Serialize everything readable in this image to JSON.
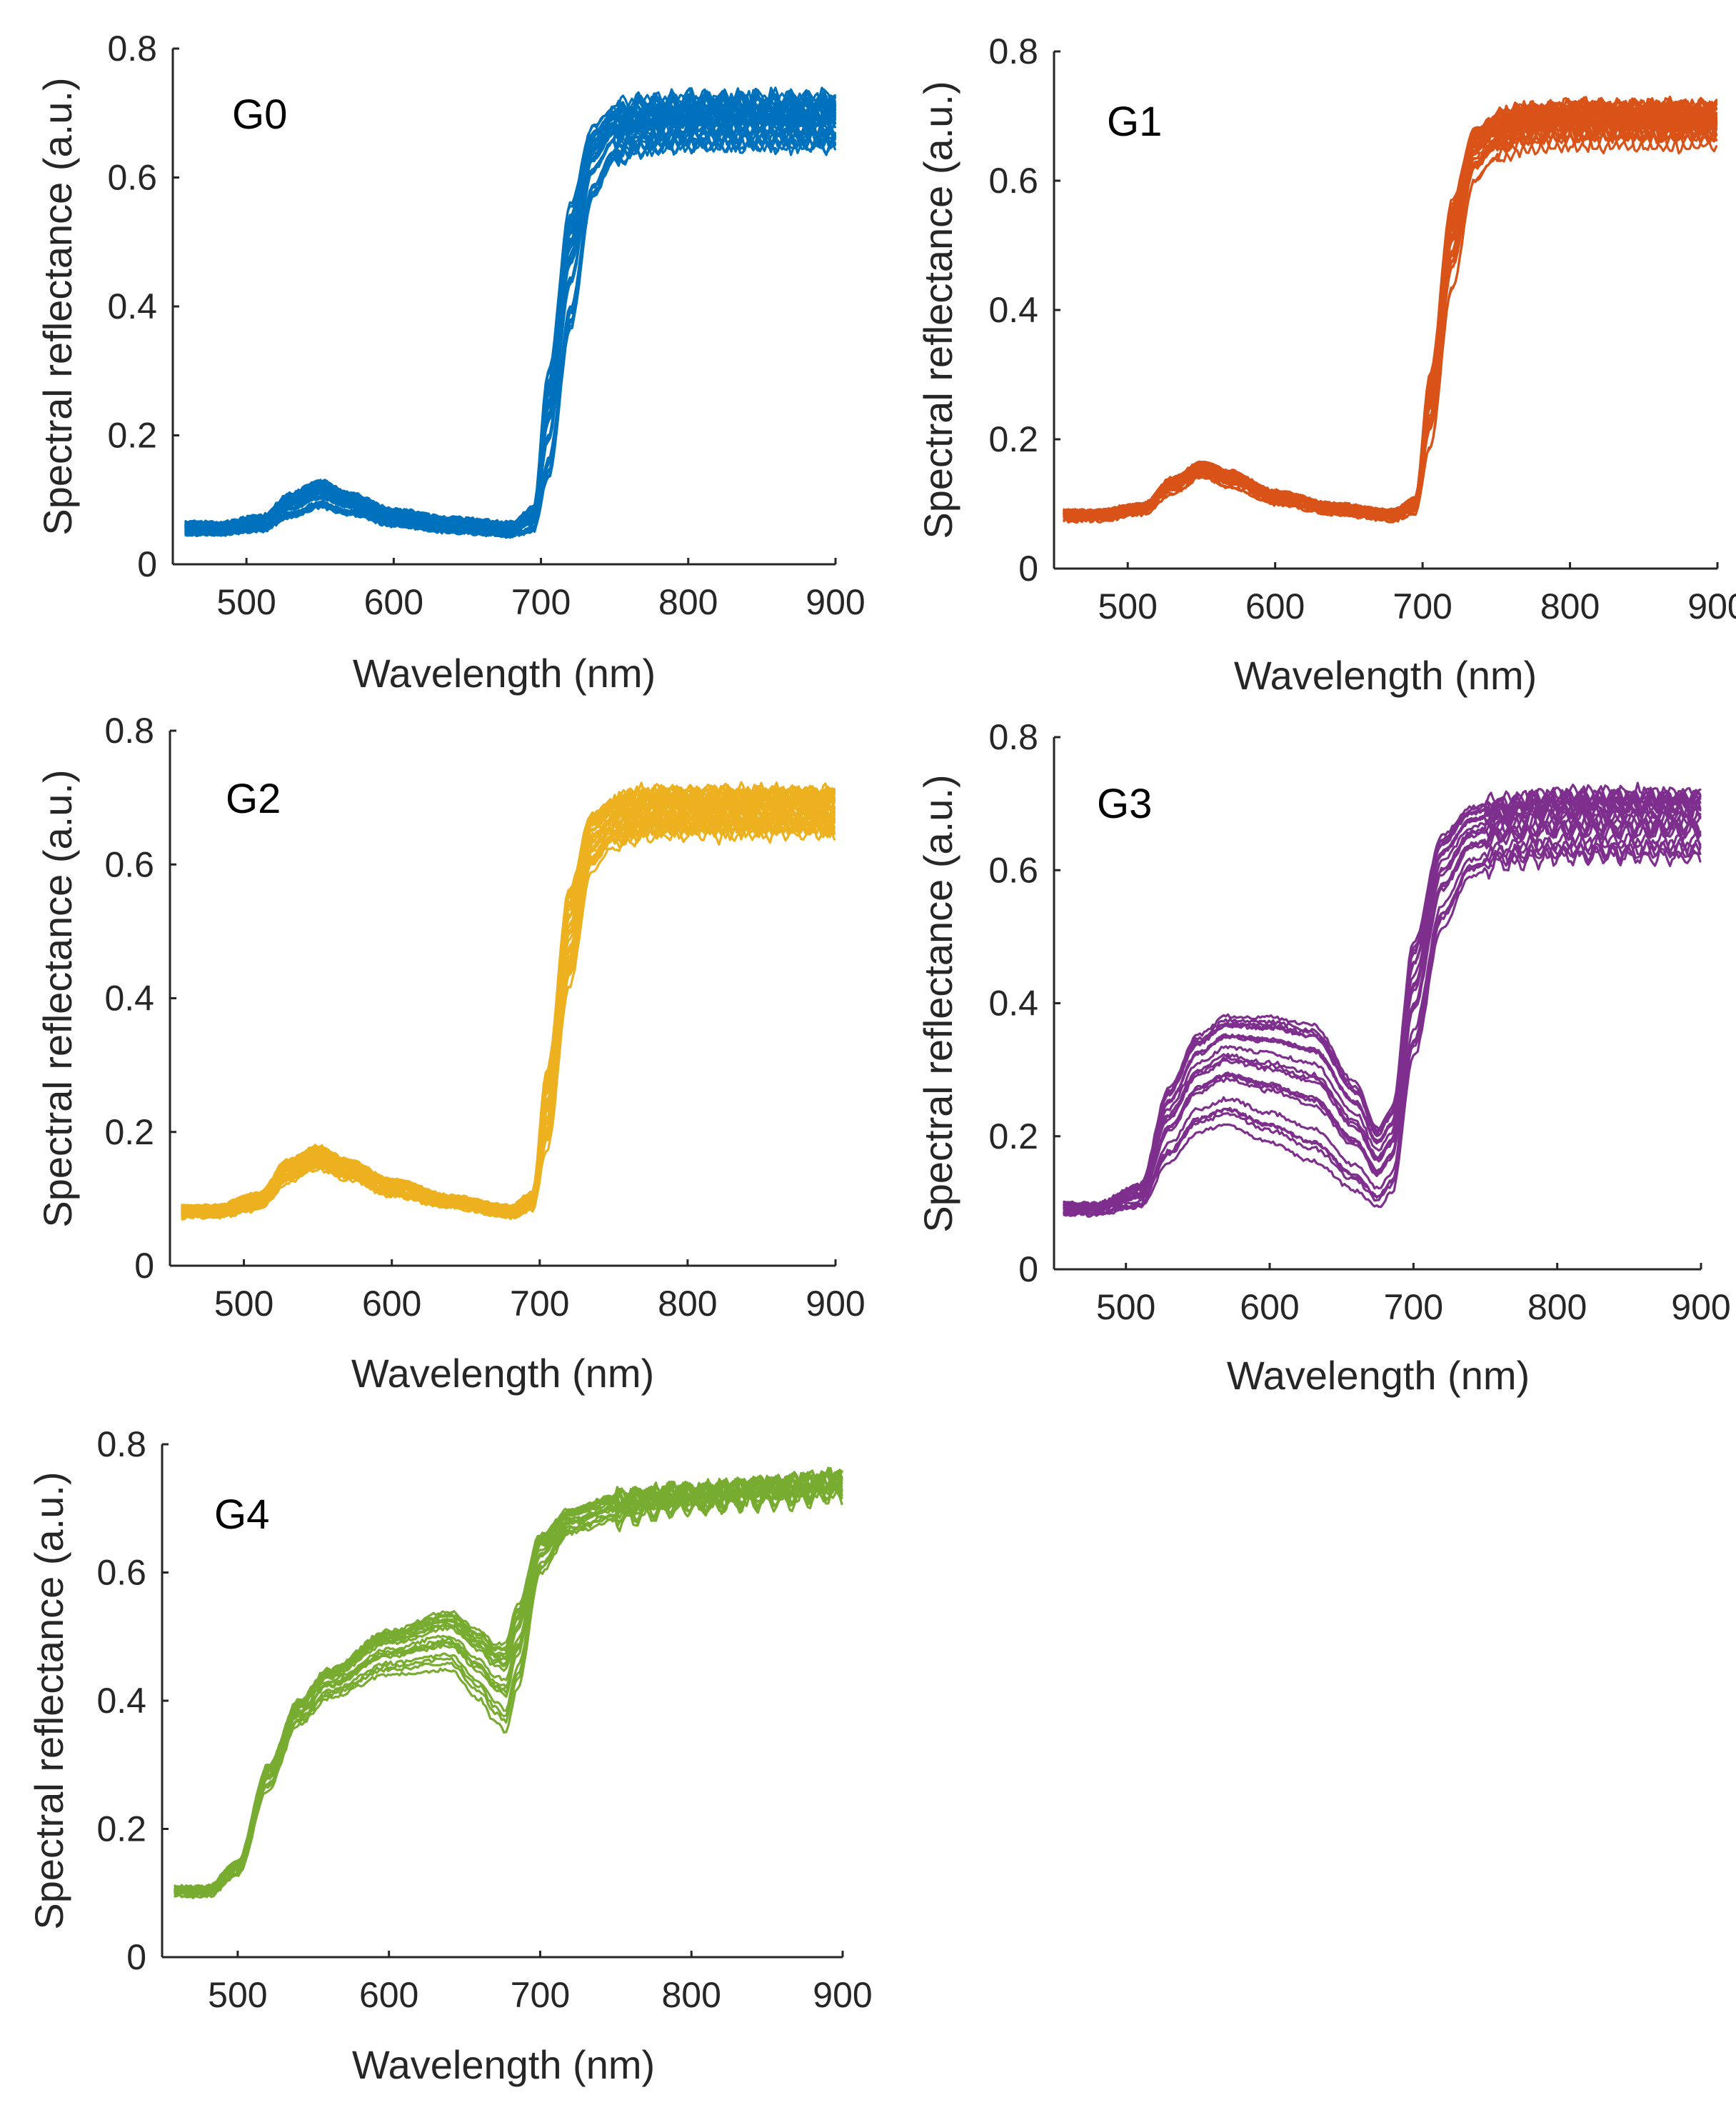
{
  "chart_data": [
    {
      "type": "line",
      "title": "G0",
      "xlabel": "Wavelength (nm)",
      "ylabel": "Spectral reflectance (a.u.)",
      "xlim": [
        450,
        900
      ],
      "ylim": [
        0,
        0.8
      ],
      "xticks": [
        500,
        600,
        700,
        800,
        900
      ],
      "yticks": [
        0,
        0.2,
        0.4,
        0.6,
        0.8
      ],
      "xtick_labels": [
        "500",
        "600",
        "700",
        "800",
        "900"
      ],
      "ytick_labels": [
        "0",
        "0.2",
        "0.4",
        "0.6",
        "0.8"
      ],
      "color": "#0072BD",
      "curve_count": 40,
      "template": {
        "x": [
          450,
          480,
          510,
          530,
          550,
          570,
          600,
          640,
          680,
          695,
          705,
          720,
          735,
          750,
          770,
          800,
          850,
          900
        ],
        "y_low": [
          0.045,
          0.045,
          0.05,
          0.07,
          0.085,
          0.075,
          0.058,
          0.048,
          0.042,
          0.048,
          0.12,
          0.35,
          0.56,
          0.62,
          0.64,
          0.645,
          0.645,
          0.645
        ],
        "y_high": [
          0.065,
          0.065,
          0.075,
          0.11,
          0.13,
          0.11,
          0.085,
          0.072,
          0.065,
          0.09,
          0.3,
          0.56,
          0.68,
          0.71,
          0.72,
          0.725,
          0.725,
          0.725
        ]
      },
      "noise_from_x": 750,
      "noise_amplitude": 0.013
    },
    {
      "type": "line",
      "title": "G1",
      "xlabel": "Wavelength (nm)",
      "ylabel": "Spectral reflectance (a.u.)",
      "xlim": [
        450,
        900
      ],
      "ylim": [
        0,
        0.8
      ],
      "xticks": [
        500,
        600,
        700,
        800,
        900
      ],
      "yticks": [
        0,
        0.2,
        0.4,
        0.6,
        0.8
      ],
      "xtick_labels": [
        "500",
        "600",
        "700",
        "800",
        "900"
      ],
      "ytick_labels": [
        "0",
        "0.2",
        "0.4",
        "0.6",
        "0.8"
      ],
      "color": "#D95319",
      "curve_count": 40,
      "template": {
        "x": [
          450,
          480,
          510,
          530,
          550,
          570,
          600,
          640,
          680,
          695,
          705,
          720,
          735,
          750,
          770,
          800,
          850,
          900
        ],
        "y_low": [
          0.07,
          0.07,
          0.08,
          0.11,
          0.135,
          0.12,
          0.095,
          0.08,
          0.07,
          0.08,
          0.16,
          0.4,
          0.58,
          0.62,
          0.64,
          0.645,
          0.645,
          0.645
        ],
        "y_high": [
          0.09,
          0.09,
          0.1,
          0.14,
          0.165,
          0.15,
          0.12,
          0.1,
          0.09,
          0.11,
          0.3,
          0.57,
          0.68,
          0.7,
          0.71,
          0.715,
          0.715,
          0.715
        ]
      },
      "noise_from_x": 750,
      "noise_amplitude": 0.013
    },
    {
      "type": "line",
      "title": "G2",
      "xlabel": "Wavelength (nm)",
      "ylabel": "Spectral reflectance (a.u.)",
      "xlim": [
        450,
        900
      ],
      "ylim": [
        0,
        0.8
      ],
      "xticks": [
        500,
        600,
        700,
        800,
        900
      ],
      "yticks": [
        0,
        0.2,
        0.4,
        0.6,
        0.8
      ],
      "xtick_labels": [
        "500",
        "600",
        "700",
        "800",
        "900"
      ],
      "ytick_labels": [
        "0",
        "0.2",
        "0.4",
        "0.6",
        "0.8"
      ],
      "color": "#EDB120",
      "curve_count": 40,
      "template": {
        "x": [
          450,
          480,
          510,
          530,
          550,
          570,
          600,
          640,
          680,
          695,
          705,
          720,
          735,
          750,
          770,
          800,
          850,
          900
        ],
        "y_low": [
          0.07,
          0.07,
          0.08,
          0.12,
          0.14,
          0.125,
          0.1,
          0.085,
          0.07,
          0.08,
          0.16,
          0.4,
          0.58,
          0.62,
          0.635,
          0.64,
          0.64,
          0.64
        ],
        "y_high": [
          0.09,
          0.09,
          0.11,
          0.16,
          0.18,
          0.16,
          0.13,
          0.105,
          0.09,
          0.11,
          0.3,
          0.57,
          0.68,
          0.7,
          0.71,
          0.71,
          0.71,
          0.71
        ]
      },
      "noise_from_x": 750,
      "noise_amplitude": 0.013
    },
    {
      "type": "line",
      "title": "G3",
      "xlabel": "Wavelength (nm)",
      "ylabel": "Spectral reflectance (a.u.)",
      "xlim": [
        450,
        900
      ],
      "ylim": [
        0,
        0.8
      ],
      "xticks": [
        500,
        600,
        700,
        800,
        900
      ],
      "yticks": [
        0,
        0.2,
        0.4,
        0.6,
        0.8
      ],
      "xtick_labels": [
        "500",
        "600",
        "700",
        "800",
        "900"
      ],
      "ytick_labels": [
        "0",
        "0.2",
        "0.4",
        "0.6",
        "0.8"
      ],
      "color": "#7E2F8E",
      "curve_count": 22,
      "template": {
        "x": [
          450,
          480,
          510,
          530,
          550,
          570,
          600,
          630,
          660,
          675,
          685,
          700,
          720,
          740,
          760,
          800,
          850,
          900
        ],
        "y_low": [
          0.08,
          0.08,
          0.09,
          0.15,
          0.19,
          0.2,
          0.17,
          0.14,
          0.1,
          0.08,
          0.1,
          0.3,
          0.5,
          0.58,
          0.6,
          0.61,
          0.61,
          0.61
        ],
        "y_high": [
          0.1,
          0.1,
          0.13,
          0.28,
          0.36,
          0.39,
          0.39,
          0.38,
          0.29,
          0.22,
          0.25,
          0.5,
          0.66,
          0.7,
          0.71,
          0.72,
          0.72,
          0.72
        ]
      },
      "noise_from_x": 750,
      "noise_amplitude": 0.013
    },
    {
      "type": "line",
      "title": "G4",
      "xlabel": "Wavelength (nm)",
      "ylabel": "Spectral reflectance (a.u.)",
      "xlim": [
        450,
        900
      ],
      "ylim": [
        0,
        0.8
      ],
      "xticks": [
        500,
        600,
        700,
        800,
        900
      ],
      "yticks": [
        0,
        0.2,
        0.4,
        0.6,
        0.8
      ],
      "xtick_labels": [
        "500",
        "600",
        "700",
        "800",
        "900"
      ],
      "ytick_labels": [
        "0",
        "0.2",
        "0.4",
        "0.6",
        "0.8"
      ],
      "color": "#77AC30",
      "curve_count": 20,
      "template": {
        "x": [
          450,
          480,
          500,
          520,
          540,
          560,
          600,
          640,
          660,
          670,
          677,
          685,
          700,
          720,
          750,
          800,
          850,
          900
        ],
        "y_low": [
          0.09,
          0.09,
          0.12,
          0.25,
          0.35,
          0.39,
          0.42,
          0.42,
          0.37,
          0.33,
          0.31,
          0.38,
          0.58,
          0.65,
          0.67,
          0.69,
          0.7,
          0.71
        ],
        "y_high": [
          0.11,
          0.11,
          0.15,
          0.3,
          0.4,
          0.45,
          0.51,
          0.54,
          0.51,
          0.49,
          0.49,
          0.55,
          0.66,
          0.7,
          0.72,
          0.73,
          0.74,
          0.75
        ]
      },
      "noise_from_x": 750,
      "noise_amplitude": 0.013
    }
  ]
}
